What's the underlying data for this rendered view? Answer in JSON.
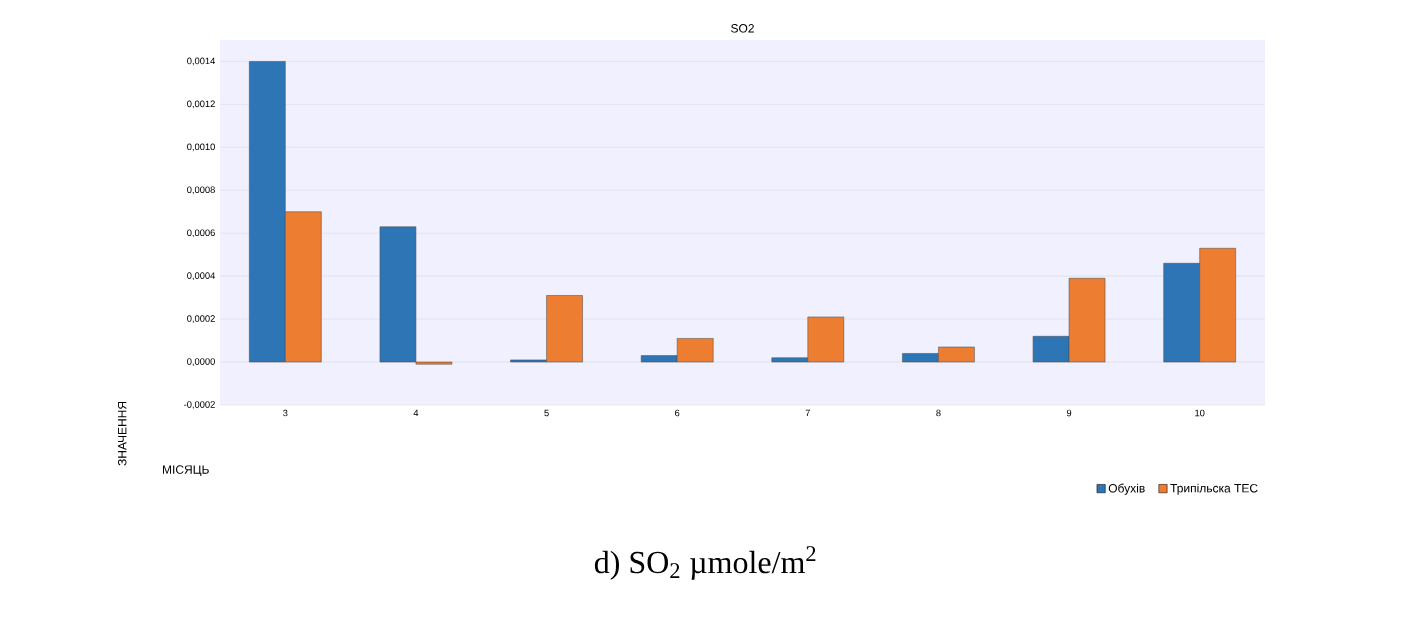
{
  "chart_data": {
    "type": "bar",
    "title": "SO2",
    "xlabel": "МІСЯЦЬ",
    "ylabel": "ЗНАЧЕННЯ",
    "categories": [
      "3",
      "4",
      "5",
      "6",
      "7",
      "8",
      "9",
      "10"
    ],
    "series": [
      {
        "name": "Обухів",
        "color": "#2e75b6",
        "values": [
          0.0014,
          0.00063,
          1e-05,
          3e-05,
          2e-05,
          4e-05,
          0.00012,
          0.00046
        ]
      },
      {
        "name": "Трипільска ТЕС",
        "color": "#ed7d31",
        "values": [
          0.0007,
          -1e-05,
          0.00031,
          0.00011,
          0.00021,
          7e-05,
          0.00039,
          0.00053
        ]
      }
    ],
    "ylim": [
      -0.0002,
      0.0015
    ],
    "yticks": [
      {
        "value": -0.0002,
        "label": "-0,0002"
      },
      {
        "value": 0,
        "label": "0,0000"
      },
      {
        "value": 0.0002,
        "label": "0,0002"
      },
      {
        "value": 0.0004,
        "label": "0,0004"
      },
      {
        "value": 0.0006,
        "label": "0,0006"
      },
      {
        "value": 0.0008,
        "label": "0,0008"
      },
      {
        "value": 0.001,
        "label": "0,0010"
      },
      {
        "value": 0.0012,
        "label": "0,0012"
      },
      {
        "value": 0.0014,
        "label": "0,0014"
      }
    ],
    "grid": "y",
    "legend": "bottom right",
    "annotations": [
      "d) SO$_{2}$ µmole/m$^{2}$"
    ]
  }
}
